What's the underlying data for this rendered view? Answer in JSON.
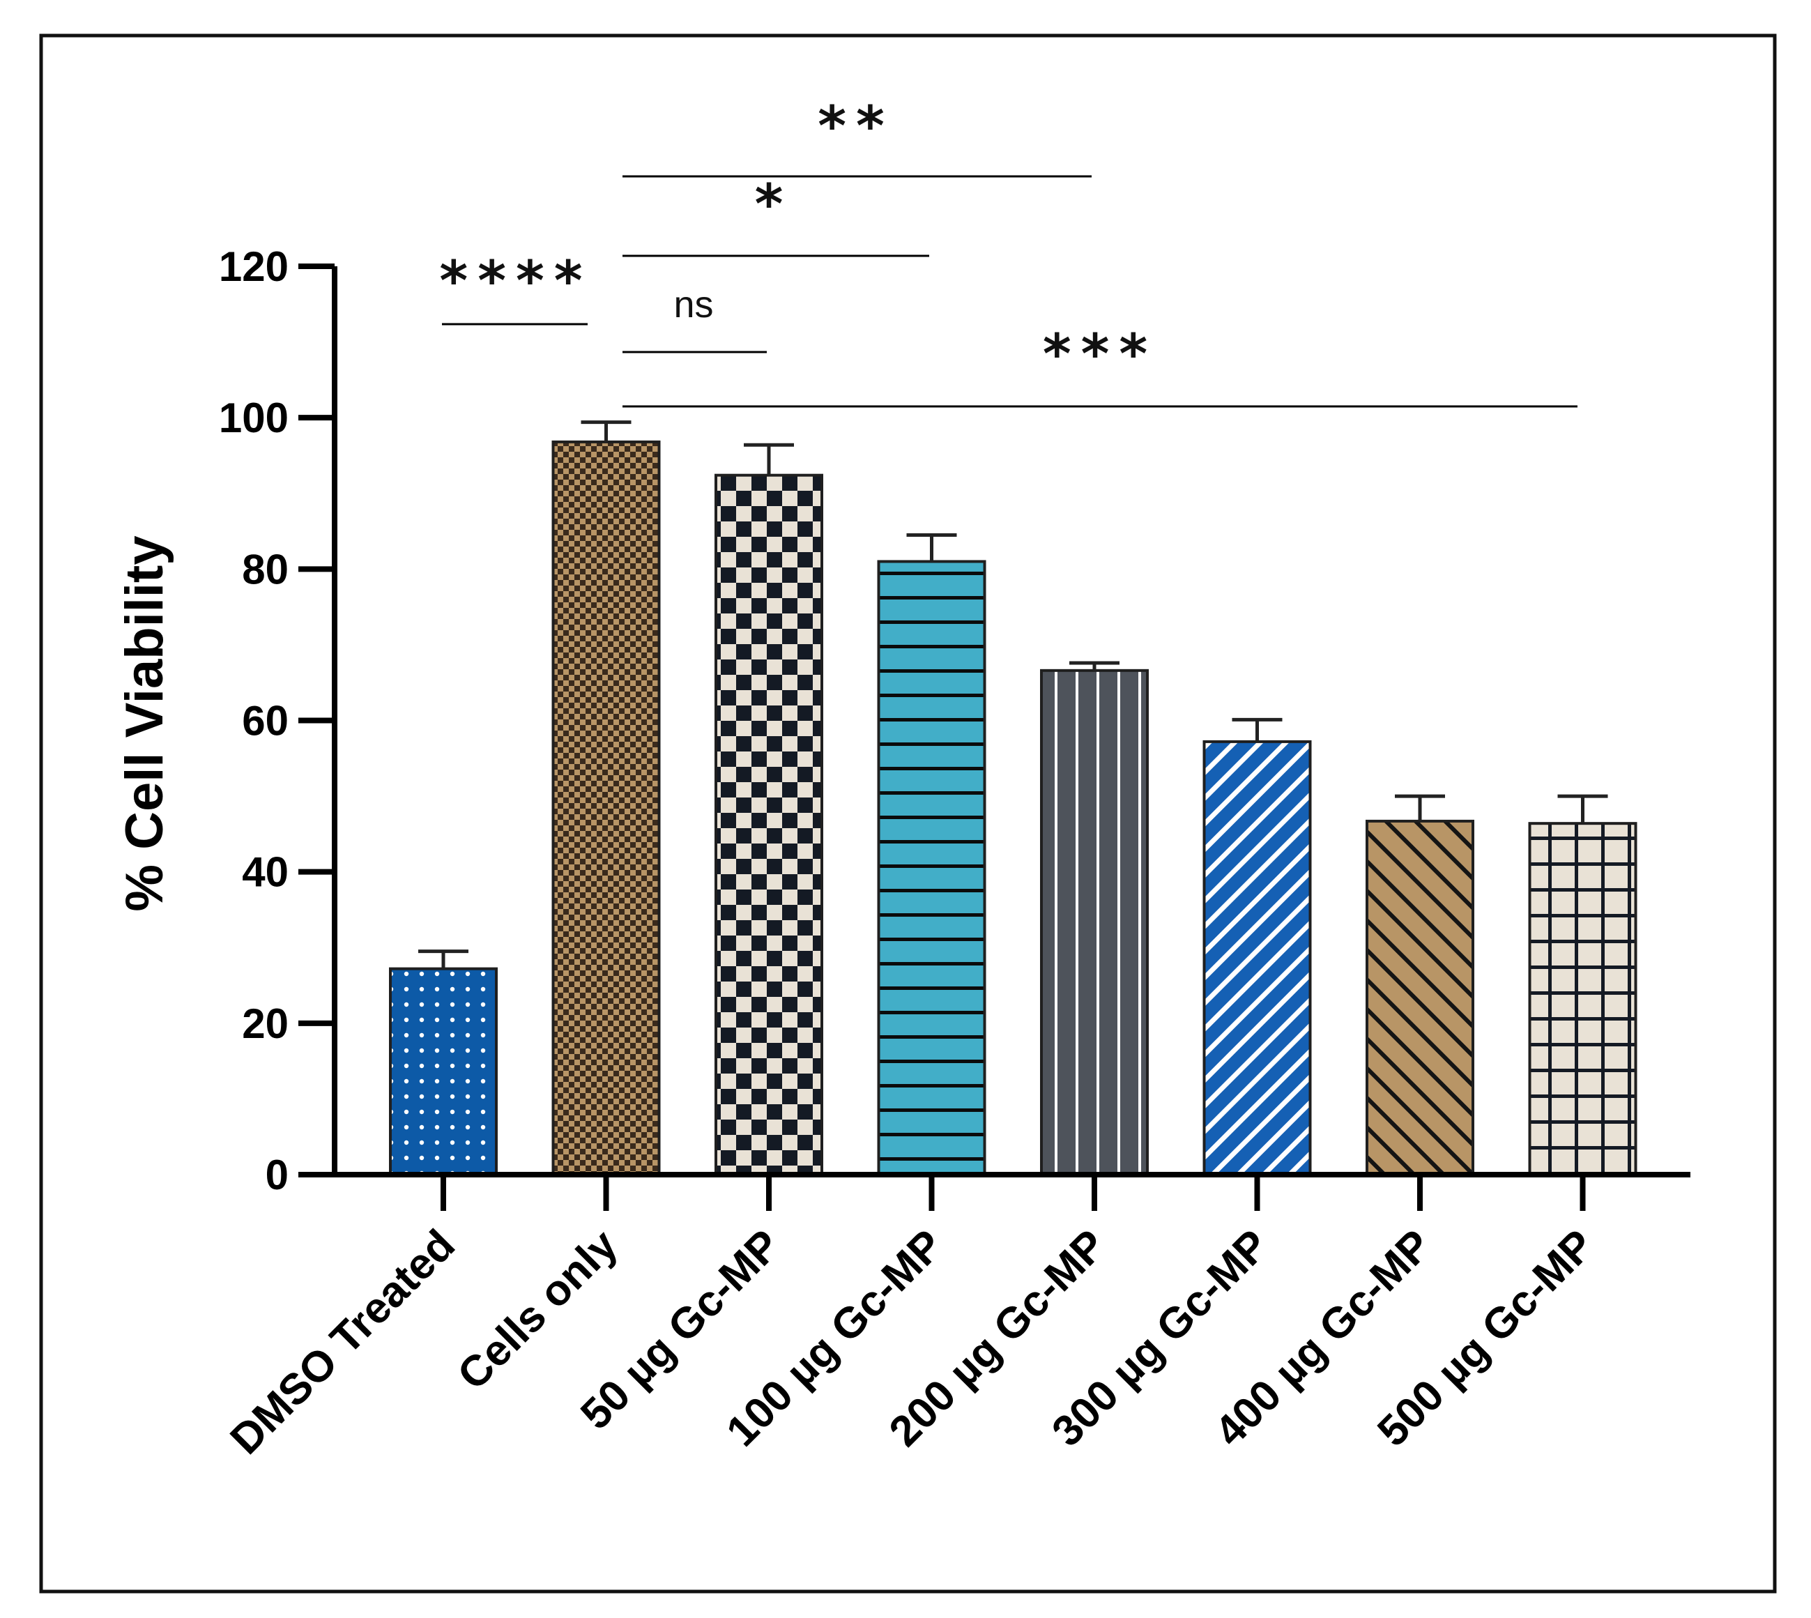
{
  "chart_data": {
    "type": "bar",
    "title": "",
    "xlabel": "",
    "ylabel": "% Cell Viability",
    "ylim": [
      0,
      120
    ],
    "yticks": [
      0,
      20,
      40,
      60,
      80,
      100,
      120
    ],
    "grid": false,
    "categories": [
      "DMSO Treated",
      "Cells only",
      "50 µg Gc-MP",
      "100 µg Gc-MP",
      "200 µg Gc-MP",
      "300 µg Gc-MP",
      "400 µg Gc-MP",
      "500 µg Gc-MP"
    ],
    "values": [
      27.2,
      96.8,
      92.4,
      81.0,
      66.6,
      57.2,
      46.7,
      46.4
    ],
    "errors": [
      2.3,
      2.6,
      4.0,
      3.5,
      1.0,
      2.9,
      3.3,
      3.6
    ],
    "bar_styles": [
      {
        "pattern": "dots",
        "fill": "#0d5aa7",
        "ink": "#ffffff"
      },
      {
        "pattern": "fine-check",
        "fill": "#b89566",
        "ink": "#3a2a1c"
      },
      {
        "pattern": "check",
        "fill": "#e9e2d6",
        "ink": "#141a24"
      },
      {
        "pattern": "horizontal",
        "fill": "#42aec8",
        "ink": "#0b0b0b"
      },
      {
        "pattern": "vertical",
        "fill": "#4e535b",
        "ink": "#ffffff"
      },
      {
        "pattern": "diagonal-up",
        "fill": "#1560b4",
        "ink": "#ffffff"
      },
      {
        "pattern": "diagonal-down",
        "fill": "#b89566",
        "ink": "#141414"
      },
      {
        "pattern": "grid",
        "fill": "#e9e2d6",
        "ink": "#141a24"
      }
    ],
    "significance": [
      {
        "label": "****",
        "from": 0,
        "to": 1
      },
      {
        "label": "ns",
        "from": 1,
        "to": 2
      },
      {
        "label": "*",
        "from": 1,
        "to": 3
      },
      {
        "label": "**",
        "from": 1,
        "to": 4
      },
      {
        "label": "***",
        "from": 1,
        "to": 7
      }
    ]
  }
}
